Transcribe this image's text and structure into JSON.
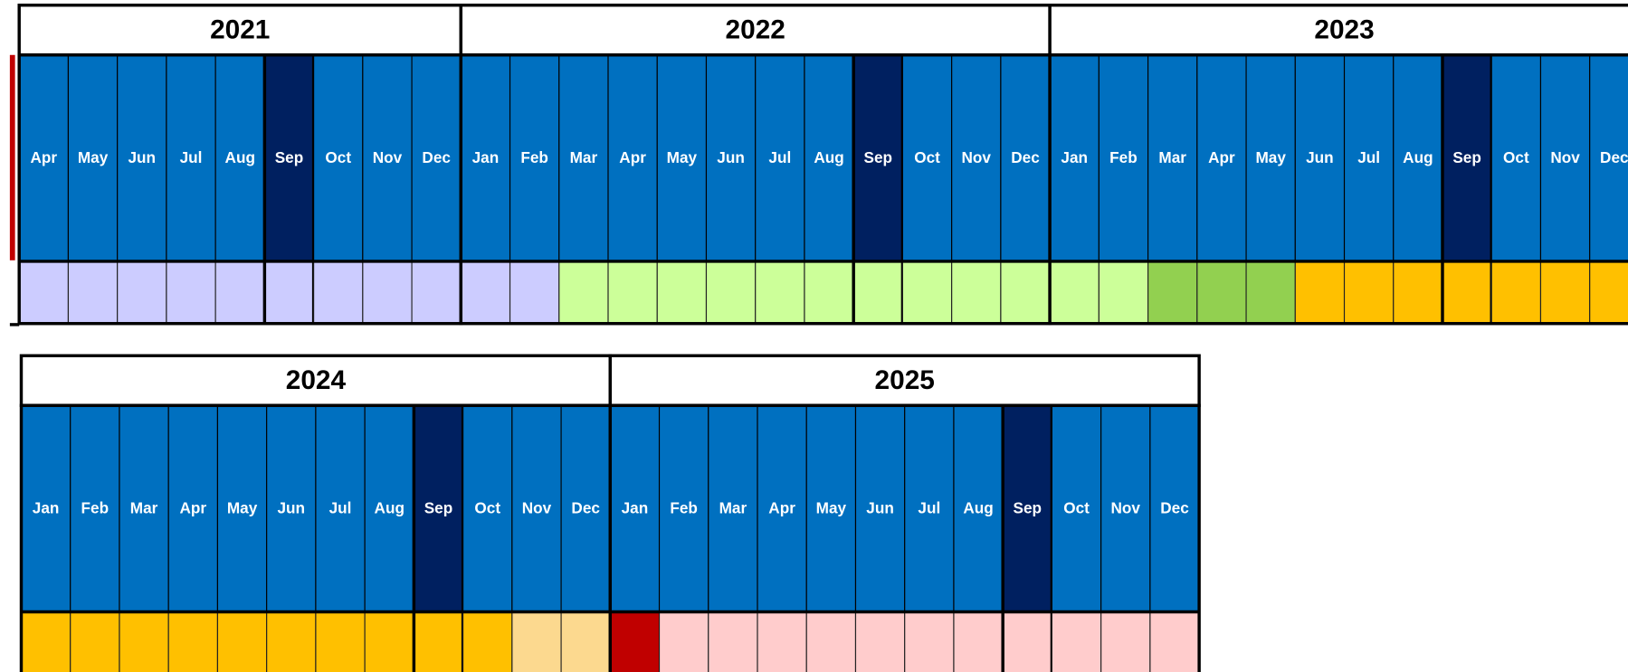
{
  "rows": [
    {
      "years": [
        {
          "year": "2021",
          "months": [
            "Apr",
            "May",
            "Jun",
            "Jul",
            "Aug",
            "Sep",
            "Oct",
            "Nov",
            "Dec"
          ],
          "bands": [
            "#0070c0",
            "#0070c0",
            "#0070c0",
            "#0070c0",
            "#0070c0",
            "#002060",
            "#0070c0",
            "#0070c0",
            "#0070c0"
          ],
          "cells": [
            "#ccccff",
            "#ccccff",
            "#ccccff",
            "#ccccff",
            "#ccccff",
            "#ccccff",
            "#ccccff",
            "#ccccff",
            "#ccccff"
          ]
        },
        {
          "year": "2022",
          "months": [
            "Jan",
            "Feb",
            "Mar",
            "Apr",
            "May",
            "Jun",
            "Jul",
            "Aug",
            "Sep",
            "Oct",
            "Nov",
            "Dec"
          ],
          "bands": [
            "#0070c0",
            "#0070c0",
            "#0070c0",
            "#0070c0",
            "#0070c0",
            "#0070c0",
            "#0070c0",
            "#0070c0",
            "#002060",
            "#0070c0",
            "#0070c0",
            "#0070c0"
          ],
          "cells": [
            "#ccccff",
            "#ccccff",
            "#ccff99",
            "#ccff99",
            "#ccff99",
            "#ccff99",
            "#ccff99",
            "#ccff99",
            "#ccff99",
            "#ccff99",
            "#ccff99",
            "#ccff99"
          ]
        },
        {
          "year": "2023",
          "months": [
            "Jan",
            "Feb",
            "Mar",
            "Apr",
            "May",
            "Jun",
            "Jul",
            "Aug",
            "Sep",
            "Oct",
            "Nov",
            "Dec"
          ],
          "bands": [
            "#0070c0",
            "#0070c0",
            "#0070c0",
            "#0070c0",
            "#0070c0",
            "#0070c0",
            "#0070c0",
            "#0070c0",
            "#002060",
            "#0070c0",
            "#0070c0",
            "#0070c0"
          ],
          "cells": [
            "#ccff99",
            "#ccff99",
            "#92d050",
            "#92d050",
            "#92d050",
            "#ffc000",
            "#ffc000",
            "#ffc000",
            "#ffc000",
            "#ffc000",
            "#ffc000",
            "#ffc000"
          ]
        }
      ]
    },
    {
      "years": [
        {
          "year": "2024",
          "months": [
            "Jan",
            "Feb",
            "Mar",
            "Apr",
            "May",
            "Jun",
            "Jul",
            "Aug",
            "Sep",
            "Oct",
            "Nov",
            "Dec"
          ],
          "bands": [
            "#0070c0",
            "#0070c0",
            "#0070c0",
            "#0070c0",
            "#0070c0",
            "#0070c0",
            "#0070c0",
            "#0070c0",
            "#002060",
            "#0070c0",
            "#0070c0",
            "#0070c0"
          ],
          "cells": [
            "#ffc000",
            "#ffc000",
            "#ffc000",
            "#ffc000",
            "#ffc000",
            "#ffc000",
            "#ffc000",
            "#ffc000",
            "#ffc000",
            "#ffc000",
            "#fcd98f",
            "#fcd98f"
          ]
        },
        {
          "year": "2025",
          "months": [
            "Jan",
            "Feb",
            "Mar",
            "Apr",
            "May",
            "Jun",
            "Jul",
            "Aug",
            "Sep",
            "Oct",
            "Nov",
            "Dec"
          ],
          "bands": [
            "#0070c0",
            "#0070c0",
            "#0070c0",
            "#0070c0",
            "#0070c0",
            "#0070c0",
            "#0070c0",
            "#0070c0",
            "#002060",
            "#0070c0",
            "#0070c0",
            "#0070c0"
          ],
          "cells": [
            "#c00000",
            "#ffcccc",
            "#ffcccc",
            "#ffcccc",
            "#ffcccc",
            "#ffcccc",
            "#ffcccc",
            "#ffcccc",
            "#ffcccc",
            "#ffcccc",
            "#ffcccc",
            "#ffcccc"
          ]
        }
      ]
    }
  ]
}
